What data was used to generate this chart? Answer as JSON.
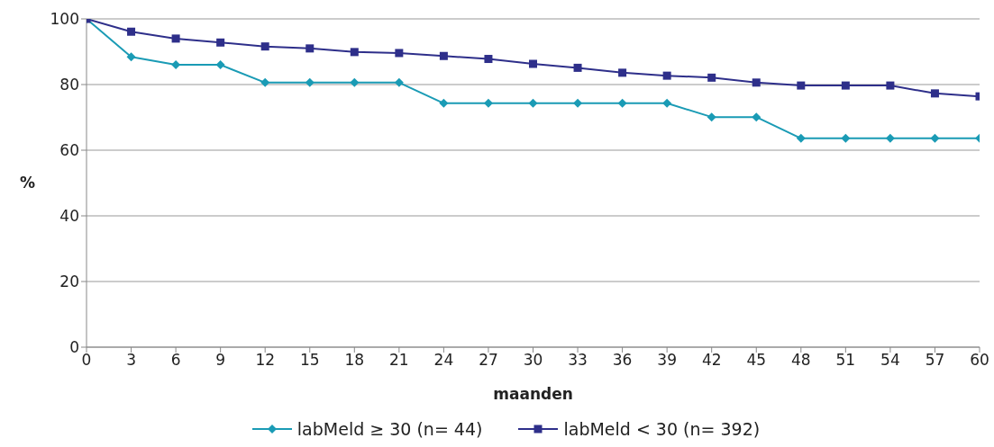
{
  "chart_data": {
    "type": "line",
    "xlabel": "maanden",
    "ylabel": "%",
    "x": [
      0,
      3,
      6,
      9,
      12,
      15,
      18,
      21,
      24,
      27,
      30,
      33,
      36,
      39,
      42,
      45,
      48,
      51,
      54,
      57,
      60
    ],
    "xlim": [
      0,
      60
    ],
    "xticks": [
      0,
      3,
      6,
      9,
      12,
      15,
      18,
      21,
      24,
      27,
      30,
      33,
      36,
      39,
      42,
      45,
      48,
      51,
      54,
      57,
      60
    ],
    "ylim": [
      0,
      100
    ],
    "yticks": [
      0,
      20,
      40,
      60,
      80,
      100
    ],
    "grid": "y",
    "legend": "bottom",
    "series": [
      {
        "name": "labMeld ≥ 30 (n= 44)",
        "color": "#1a9bb5",
        "marker": "diamond",
        "values": [
          100,
          88.4,
          86,
          86,
          80.6,
          80.6,
          80.6,
          80.6,
          74.3,
          74.3,
          74.3,
          74.3,
          74.3,
          74.3,
          70.1,
          70.1,
          63.6,
          63.6,
          63.6,
          63.6,
          63.6
        ]
      },
      {
        "name": "labMeld < 30 (n= 392)",
        "color": "#2e2f8a",
        "marker": "square",
        "values": [
          100,
          96.1,
          94,
          92.8,
          91.6,
          91,
          89.9,
          89.6,
          88.7,
          87.8,
          86.3,
          85.1,
          83.6,
          82.7,
          82.1,
          80.6,
          79.7,
          79.7,
          79.7,
          77.3,
          76.4
        ]
      }
    ]
  }
}
